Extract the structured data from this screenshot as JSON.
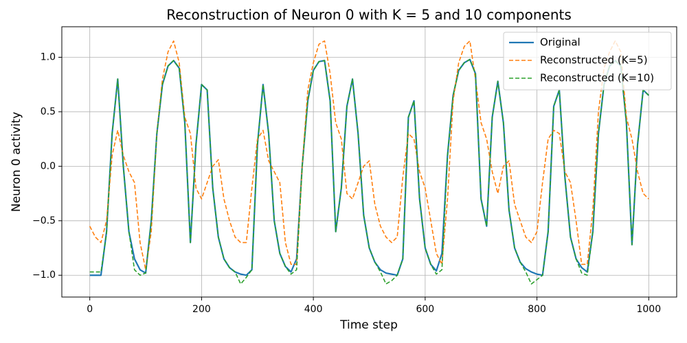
{
  "chart_data": {
    "type": "line",
    "title": "Reconstruction of Neuron 0 with K = 5 and 10 components",
    "x_label": "Time step",
    "y_label": "Neuron 0 activity",
    "x": [
      0,
      10,
      20,
      30,
      40,
      50,
      60,
      70,
      80,
      90,
      100,
      110,
      120,
      130,
      140,
      150,
      160,
      170,
      180,
      190,
      200,
      210,
      220,
      230,
      240,
      250,
      260,
      270,
      280,
      290,
      300,
      310,
      320,
      330,
      340,
      350,
      360,
      370,
      380,
      390,
      400,
      410,
      420,
      430,
      440,
      450,
      460,
      470,
      480,
      490,
      500,
      510,
      520,
      530,
      540,
      550,
      560,
      570,
      580,
      590,
      600,
      610,
      620,
      630,
      640,
      650,
      660,
      670,
      680,
      690,
      700,
      710,
      720,
      730,
      740,
      750,
      760,
      770,
      780,
      790,
      800,
      810,
      820,
      830,
      840,
      850,
      860,
      870,
      880,
      890,
      900,
      910,
      920,
      930,
      940,
      950,
      960,
      970,
      980,
      990,
      1000
    ],
    "series": [
      {
        "name": "Original",
        "color": "#1f77b4",
        "linestyle": "solid",
        "values": [
          -1,
          -1,
          -1,
          -0.6,
          0.3,
          0.8,
          0.0,
          -0.6,
          -0.85,
          -0.95,
          -0.98,
          -0.5,
          0.3,
          0.75,
          0.92,
          0.97,
          0.9,
          0.4,
          -0.7,
          0.2,
          0.75,
          0.7,
          -0.2,
          -0.65,
          -0.85,
          -0.93,
          -0.97,
          -0.99,
          -1.0,
          -0.95,
          0.2,
          0.75,
          0.3,
          -0.5,
          -0.8,
          -0.92,
          -0.97,
          -0.85,
          0.0,
          0.6,
          0.88,
          0.96,
          0.97,
          0.6,
          -0.6,
          -0.2,
          0.55,
          0.8,
          0.3,
          -0.45,
          -0.75,
          -0.88,
          -0.95,
          -0.98,
          -0.99,
          -1.0,
          -0.85,
          0.45,
          0.6,
          -0.3,
          -0.75,
          -0.9,
          -0.96,
          -0.8,
          0.1,
          0.65,
          0.88,
          0.95,
          0.98,
          0.85,
          -0.3,
          -0.55,
          0.45,
          0.78,
          0.4,
          -0.4,
          -0.75,
          -0.88,
          -0.94,
          -0.97,
          -0.99,
          -1.0,
          -0.6,
          0.55,
          0.7,
          -0.1,
          -0.65,
          -0.85,
          -0.93,
          -0.97,
          -0.6,
          0.3,
          0.75,
          0.92,
          0.97,
          0.92,
          0.4,
          -0.72,
          0.2,
          0.7,
          0.65
        ]
      },
      {
        "name": "Reconstructed (K=5)",
        "color": "#ff7f0e",
        "linestyle": "dashed",
        "values": [
          -0.55,
          -0.65,
          -0.7,
          -0.5,
          0.1,
          0.33,
          0.1,
          -0.05,
          -0.15,
          -0.7,
          -0.95,
          -0.6,
          0.3,
          0.8,
          1.05,
          1.15,
          0.95,
          0.45,
          0.3,
          -0.2,
          -0.3,
          -0.15,
          0.0,
          0.06,
          -0.3,
          -0.5,
          -0.65,
          -0.7,
          -0.7,
          -0.2,
          0.25,
          0.33,
          0.05,
          -0.05,
          -0.15,
          -0.7,
          -0.9,
          -0.9,
          0.0,
          0.7,
          0.95,
          1.12,
          1.15,
          0.85,
          0.4,
          0.25,
          -0.25,
          -0.3,
          -0.15,
          0.0,
          0.05,
          -0.35,
          -0.55,
          -0.65,
          -0.7,
          -0.65,
          -0.1,
          0.3,
          0.25,
          -0.05,
          -0.2,
          -0.5,
          -0.8,
          -0.9,
          -0.3,
          0.6,
          0.95,
          1.1,
          1.15,
          0.8,
          0.4,
          0.25,
          -0.05,
          -0.25,
          0.0,
          0.05,
          -0.35,
          -0.5,
          -0.65,
          -0.7,
          -0.6,
          -0.15,
          0.25,
          0.33,
          0.3,
          -0.05,
          -0.15,
          -0.5,
          -0.9,
          -0.9,
          -0.4,
          0.5,
          0.9,
          1.05,
          1.15,
          1.05,
          0.45,
          0.25,
          -0.05,
          -0.25,
          -0.3
        ]
      },
      {
        "name": "Reconstructed (K=10)",
        "color": "#2ca02c",
        "linestyle": "dashed",
        "values": [
          -0.97,
          -0.97,
          -0.97,
          -0.62,
          0.3,
          0.8,
          0.0,
          -0.6,
          -0.95,
          -1.0,
          -0.98,
          -0.5,
          0.3,
          0.75,
          0.92,
          0.97,
          0.9,
          0.4,
          -0.7,
          0.2,
          0.75,
          0.7,
          -0.2,
          -0.65,
          -0.85,
          -0.93,
          -0.97,
          -1.08,
          -1.02,
          -0.95,
          0.2,
          0.75,
          0.3,
          -0.5,
          -0.8,
          -0.92,
          -0.99,
          -0.95,
          0.0,
          0.6,
          0.88,
          0.96,
          0.97,
          0.6,
          -0.6,
          -0.2,
          0.55,
          0.8,
          0.3,
          -0.45,
          -0.75,
          -0.88,
          -0.97,
          -1.08,
          -1.05,
          -1.0,
          -0.85,
          0.45,
          0.6,
          -0.3,
          -0.75,
          -0.9,
          -0.99,
          -0.95,
          0.1,
          0.65,
          0.88,
          0.95,
          0.98,
          0.85,
          -0.3,
          -0.55,
          0.45,
          0.78,
          0.4,
          -0.4,
          -0.75,
          -0.88,
          -0.97,
          -1.08,
          -1.04,
          -1.0,
          -0.6,
          0.55,
          0.7,
          -0.1,
          -0.65,
          -0.85,
          -0.98,
          -1.0,
          -0.6,
          0.3,
          0.75,
          0.92,
          0.97,
          0.92,
          0.4,
          -0.72,
          0.2,
          0.7,
          0.65
        ]
      }
    ],
    "xlim": [
      -50,
      1050
    ],
    "ylim": [
      -1.2,
      1.28
    ],
    "xticks": [
      0,
      200,
      400,
      600,
      800,
      1000
    ],
    "yticks": [
      {
        "value": -1.0,
        "label": "−1.0"
      },
      {
        "value": -0.5,
        "label": "−0.5"
      },
      {
        "value": 0.0,
        "label": "0.0"
      },
      {
        "value": 0.5,
        "label": "0.5"
      },
      {
        "value": 1.0,
        "label": "1.0"
      }
    ],
    "grid": true,
    "legend": "upper right"
  }
}
